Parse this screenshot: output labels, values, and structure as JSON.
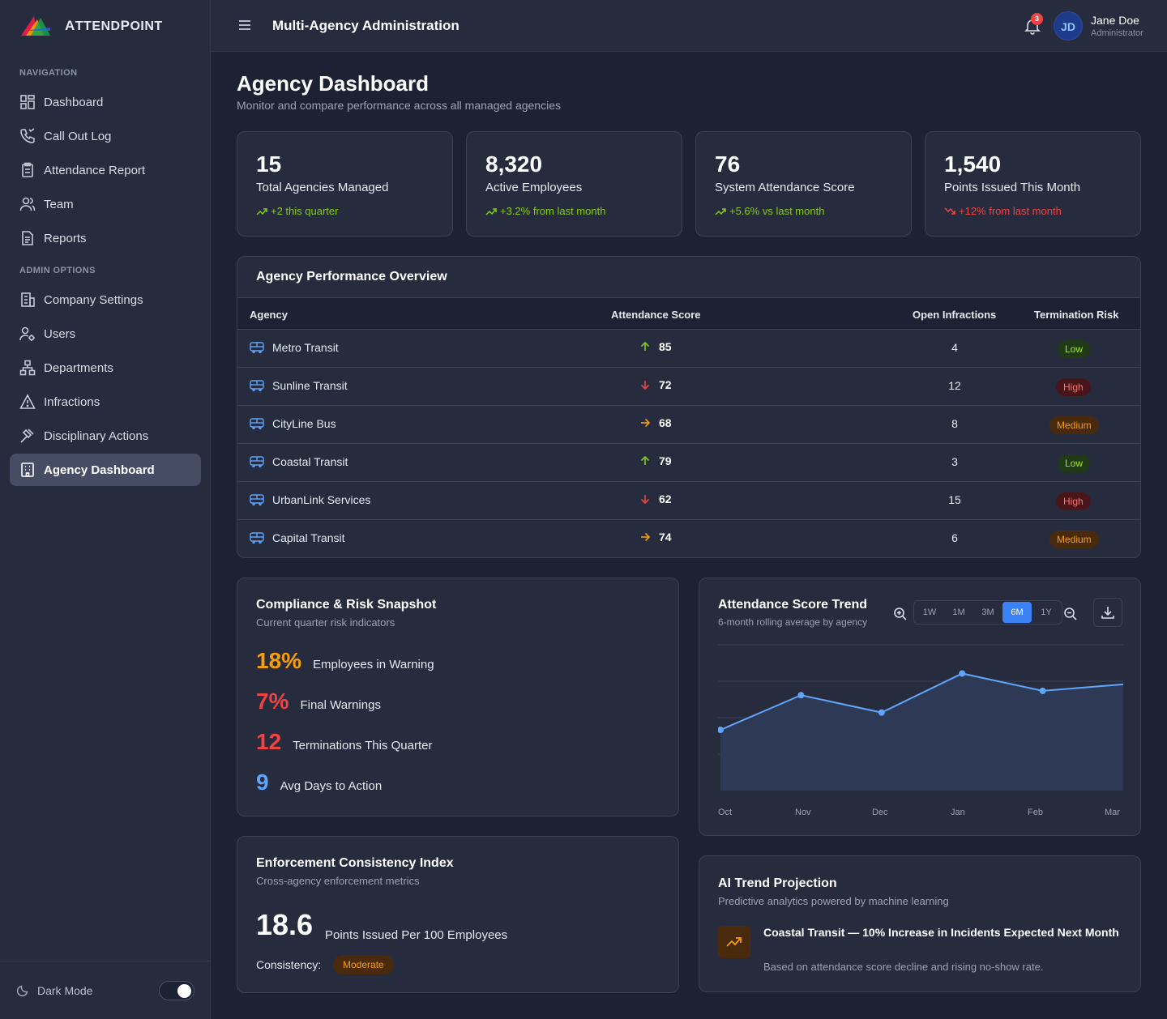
{
  "brand": {
    "name_first": "A",
    "name_rest_1": "TTEND",
    "name_p": "P",
    "name_rest_2": "OINT"
  },
  "sidebar": {
    "section_nav": "NAVIGATION",
    "section_admin": "ADMIN OPTIONS",
    "items": [
      {
        "label": "Dashboard",
        "icon": "dashboard-icon"
      },
      {
        "label": "Call Out Log",
        "icon": "phone-icon"
      },
      {
        "label": "Attendance Report",
        "icon": "clipboard-icon"
      },
      {
        "label": "Team",
        "icon": "team-icon"
      },
      {
        "label": "Reports",
        "icon": "document-icon"
      },
      {
        "label": "Company Settings",
        "icon": "building-icon"
      },
      {
        "label": "Users",
        "icon": "users-icon"
      },
      {
        "label": "Departments",
        "icon": "org-chart-icon"
      },
      {
        "label": "Infractions",
        "icon": "warning-icon"
      },
      {
        "label": "Disciplinary Actions",
        "icon": "gavel-icon"
      },
      {
        "label": "Agency Dashboard",
        "icon": "office-icon",
        "active": true
      }
    ],
    "dark_mode_label": "Dark Mode",
    "dark_mode_on": true
  },
  "header": {
    "title": "Multi-Agency Administration",
    "notifications": "3",
    "user_initials": "JD",
    "user_name": "Jane Doe",
    "user_role": "Administrator"
  },
  "page": {
    "title": "Agency Dashboard",
    "subtitle": "Monitor and compare performance across all managed agencies"
  },
  "stats": [
    {
      "value": "15",
      "label": "Total Agencies Managed",
      "trend": "+2 this quarter",
      "direction": "up"
    },
    {
      "value": "8,320",
      "label": "Active Employees",
      "trend": "+3.2% from last month",
      "direction": "up"
    },
    {
      "value": "76",
      "label": "System Attendance Score",
      "trend": "+5.6% vs last month",
      "direction": "up"
    },
    {
      "value": "1,540",
      "label": "Points Issued This Month",
      "trend": "+12% from last month",
      "direction": "down"
    }
  ],
  "performance": {
    "title": "Agency Performance Overview",
    "columns": [
      "Agency",
      "Attendance Score",
      "Open Infractions",
      "Termination Risk"
    ],
    "rows": [
      {
        "agency": "Metro Transit",
        "score": "85",
        "trend": "up",
        "infractions": "4",
        "risk": "Low"
      },
      {
        "agency": "Sunline Transit",
        "score": "72",
        "trend": "down",
        "infractions": "12",
        "risk": "High"
      },
      {
        "agency": "CityLine Bus",
        "score": "68",
        "trend": "flat",
        "infractions": "8",
        "risk": "Medium"
      },
      {
        "agency": "Coastal Transit",
        "score": "79",
        "trend": "up",
        "infractions": "3",
        "risk": "Low"
      },
      {
        "agency": "UrbanLink Services",
        "score": "62",
        "trend": "down",
        "infractions": "15",
        "risk": "High"
      },
      {
        "agency": "Capital Transit",
        "score": "74",
        "trend": "flat",
        "infractions": "6",
        "risk": "Medium"
      }
    ]
  },
  "compliance": {
    "title": "Compliance & Risk Snapshot",
    "subtitle": "Current quarter risk indicators",
    "metrics": [
      {
        "value": "18%",
        "label": "Employees in Warning",
        "color": "#f59e0b"
      },
      {
        "value": "7%",
        "label": "Final Warnings",
        "color": "#ef4444"
      },
      {
        "value": "12",
        "label": "Terminations This Quarter",
        "color": "#ef4444"
      },
      {
        "value": "9",
        "label": "Avg Days to Action",
        "color": "#60a5fa"
      }
    ]
  },
  "trend_card": {
    "title": "Attendance Score Trend",
    "subtitle": "6-month rolling average by agency",
    "ranges": [
      "1W",
      "1M",
      "3M",
      "6M",
      "1Y"
    ],
    "selected_range": "6M"
  },
  "chart_data": {
    "type": "area",
    "x": [
      "Oct",
      "Nov",
      "Dec",
      "Jan",
      "Feb",
      "Mar"
    ],
    "values": [
      72,
      80,
      76,
      85,
      81,
      82.5
    ],
    "ylim": [
      58,
      92
    ],
    "grid": true,
    "color": "#60a5fa"
  },
  "enforcement": {
    "title": "Enforcement Consistency Index",
    "subtitle": "Cross-agency enforcement metrics",
    "value": "18.6",
    "value_label": "Points Issued Per 100 Employees",
    "consistency_label": "Consistency:",
    "consistency_value": "Moderate"
  },
  "ai": {
    "title": "AI Trend Projection",
    "subtitle": "Predictive analytics powered by machine learning",
    "headline": "Coastal Transit — 10% Increase in Incidents Expected Next Month",
    "body": "Based on attendance score decline and rising no-show rate."
  }
}
